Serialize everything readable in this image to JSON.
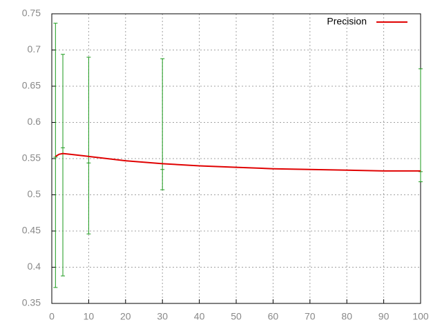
{
  "chart_data": {
    "type": "line",
    "x": [
      1,
      2,
      3,
      5,
      10,
      15,
      20,
      25,
      30,
      40,
      50,
      60,
      70,
      80,
      90,
      100
    ],
    "series": [
      {
        "name": "Precision",
        "color": "#e00000",
        "values": [
          0.553,
          0.556,
          0.557,
          0.556,
          0.553,
          0.55,
          0.547,
          0.545,
          0.543,
          0.54,
          0.538,
          0.536,
          0.535,
          0.534,
          0.533,
          0.533
        ]
      }
    ],
    "errorbars": {
      "color": "#1a9a1a",
      "x": [
        1,
        3,
        10,
        30,
        100
      ],
      "values": [
        0.552,
        0.565,
        0.544,
        0.535,
        0.532
      ],
      "low": [
        0.372,
        0.388,
        0.446,
        0.507,
        0.518
      ],
      "high": [
        0.737,
        0.694,
        0.69,
        0.688,
        0.674
      ]
    },
    "xlim": [
      0,
      100
    ],
    "xticks": [
      0,
      10,
      20,
      30,
      40,
      50,
      60,
      70,
      80,
      90,
      100
    ],
    "ylim": [
      0.35,
      0.75
    ],
    "yticks": [
      0.35,
      0.4,
      0.45,
      0.5,
      0.55,
      0.6,
      0.65,
      0.7,
      0.75
    ],
    "grid": true,
    "legend": "top-right"
  }
}
